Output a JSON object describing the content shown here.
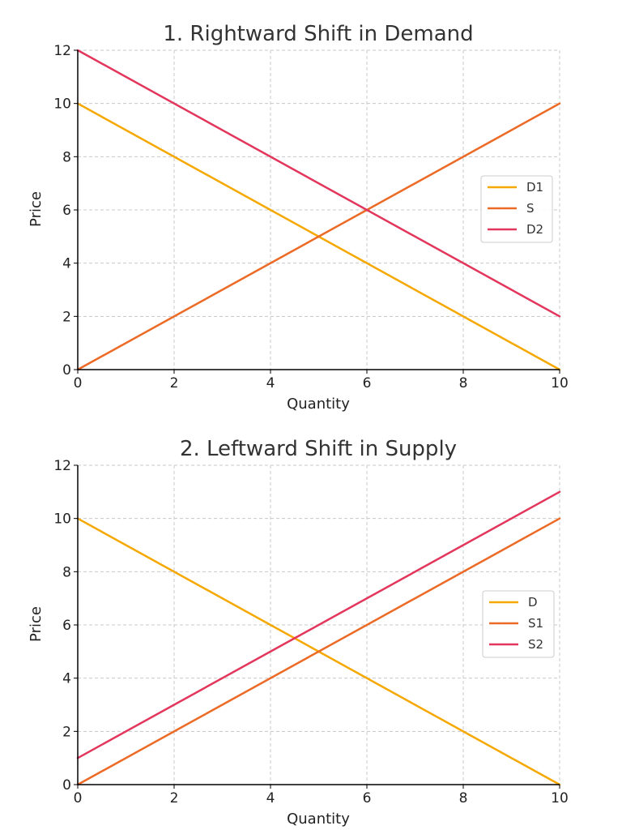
{
  "chart_data": [
    {
      "type": "line",
      "title": "1. Rightward Shift in Demand",
      "xlabel": "Quantity",
      "ylabel": "Price",
      "xlim": [
        0,
        10
      ],
      "ylim": [
        0,
        12
      ],
      "xticks": [
        0,
        2,
        4,
        6,
        8,
        10
      ],
      "yticks": [
        0,
        2,
        4,
        6,
        8,
        10,
        12
      ],
      "grid": true,
      "legend_position": "center-right",
      "series": [
        {
          "name": "D1",
          "color": "#F5A800",
          "x": [
            0,
            10
          ],
          "y": [
            10,
            0
          ]
        },
        {
          "name": "S",
          "color": "#EC6A25",
          "x": [
            0,
            10
          ],
          "y": [
            0,
            10
          ]
        },
        {
          "name": "D2",
          "color": "#E3365C",
          "x": [
            0,
            10
          ],
          "y": [
            12,
            2
          ]
        }
      ]
    },
    {
      "type": "line",
      "title": "2. Leftward Shift in Supply",
      "xlabel": "Quantity",
      "ylabel": "Price",
      "xlim": [
        0,
        10
      ],
      "ylim": [
        0,
        12
      ],
      "xticks": [
        0,
        2,
        4,
        6,
        8,
        10
      ],
      "yticks": [
        0,
        2,
        4,
        6,
        8,
        10,
        12
      ],
      "grid": true,
      "legend_position": "center-right",
      "series": [
        {
          "name": "D",
          "color": "#F5A800",
          "x": [
            0,
            10
          ],
          "y": [
            10,
            0
          ]
        },
        {
          "name": "S1",
          "color": "#EC6A25",
          "x": [
            0,
            10
          ],
          "y": [
            0,
            10
          ]
        },
        {
          "name": "S2",
          "color": "#E3365C",
          "x": [
            0,
            10
          ],
          "y": [
            1,
            11
          ]
        }
      ]
    }
  ]
}
